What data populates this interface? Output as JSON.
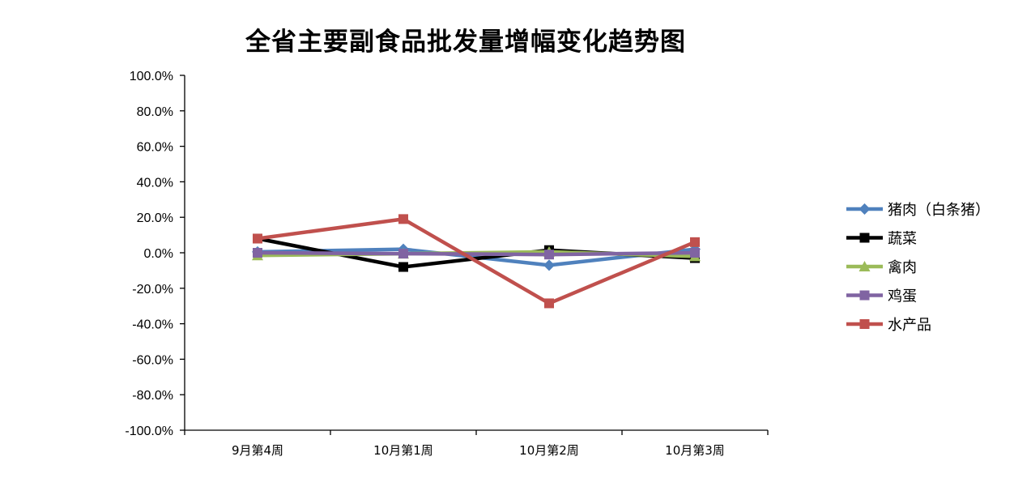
{
  "chart_data": {
    "type": "line",
    "title": "全省主要副食品批发量增幅变化趋势图",
    "categories": [
      "9月第4周",
      "10月第1周",
      "10月第2周",
      "10月第3周"
    ],
    "ylim": [
      -100,
      100
    ],
    "ytick_step": 20,
    "y_tick_labels": [
      "100.0%",
      "80.0%",
      "60.0%",
      "40.0%",
      "20.0%",
      "0.0%",
      "-20.0%",
      "-40.0%",
      "-60.0%",
      "-80.0%",
      "-100.0%"
    ],
    "grid": false,
    "legend_position": "right",
    "series": [
      {
        "name": "猪肉（白条猪）",
        "color": "#4F81BD",
        "marker": "diamond",
        "values": [
          0.5,
          2.0,
          -7.0,
          2.0
        ]
      },
      {
        "name": "蔬菜",
        "color": "#000000",
        "marker": "square",
        "values": [
          8.0,
          -8.0,
          1.5,
          -3.0
        ]
      },
      {
        "name": "禽肉",
        "color": "#9BBB59",
        "marker": "triangle",
        "values": [
          -1.5,
          -0.5,
          0.5,
          -2.0
        ]
      },
      {
        "name": "鸡蛋",
        "color": "#8064A2",
        "marker": "square",
        "values": [
          0.0,
          -0.5,
          -1.0,
          0.0
        ]
      },
      {
        "name": "水产品",
        "color": "#C0504D",
        "marker": "square",
        "values": [
          8.0,
          19.0,
          -28.5,
          6.0
        ]
      }
    ]
  }
}
